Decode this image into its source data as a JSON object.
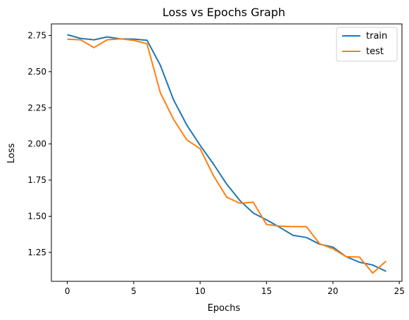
{
  "chart_data": {
    "type": "line",
    "title": "Loss vs Epochs Graph",
    "xlabel": "Epochs",
    "ylabel": "Loss",
    "xlim": [
      -1.2,
      25.2
    ],
    "ylim": [
      1.05,
      2.83
    ],
    "xticks": [
      0,
      5,
      10,
      15,
      20,
      25
    ],
    "xtick_labels": [
      "0",
      "5",
      "10",
      "15",
      "20",
      "25"
    ],
    "yticks": [
      1.25,
      1.5,
      1.75,
      2.0,
      2.25,
      2.5,
      2.75
    ],
    "ytick_labels": [
      "1.25",
      "1.50",
      "1.75",
      "2.00",
      "2.25",
      "2.50",
      "2.75"
    ],
    "grid": false,
    "legend_position": "top-right",
    "x": [
      0,
      1,
      2,
      3,
      4,
      5,
      6,
      7,
      8,
      9,
      10,
      11,
      12,
      13,
      14,
      15,
      16,
      17,
      18,
      19,
      20,
      21,
      22,
      23,
      24
    ],
    "series": [
      {
        "name": "train",
        "color": "#1f77b4",
        "values": [
          2.755,
          2.73,
          2.72,
          2.74,
          2.727,
          2.725,
          2.717,
          2.545,
          2.305,
          2.13,
          1.99,
          1.862,
          1.722,
          1.608,
          1.522,
          1.475,
          1.423,
          1.368,
          1.353,
          1.307,
          1.287,
          1.22,
          1.182,
          1.163,
          1.119
        ]
      },
      {
        "name": "test",
        "color": "#ff7f0e",
        "values": [
          2.724,
          2.72,
          2.666,
          2.72,
          2.727,
          2.716,
          2.693,
          2.355,
          2.17,
          2.028,
          1.967,
          1.782,
          1.632,
          1.59,
          1.597,
          1.443,
          1.432,
          1.428,
          1.428,
          1.31,
          1.275,
          1.22,
          1.218,
          1.107,
          1.19
        ]
      }
    ]
  }
}
